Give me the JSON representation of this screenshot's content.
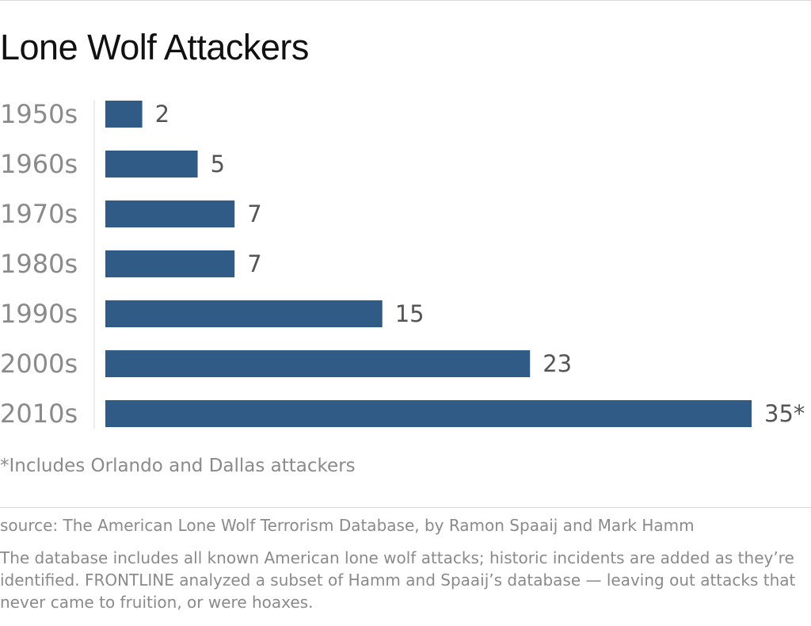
{
  "title": "Lone Wolf Attackers",
  "footnote": "*Includes Orlando and Dallas attackers",
  "source": "source: The American Lone Wolf Terrorism Database, by Ramon Spaaij and Mark Hamm",
  "note": "The database includes all known American lone wolf attacks; historic incidents are added as they’re identified. FRONTLINE analyzed a subset of Hamm and Spaaij’s database — leaving out attacks that never came to fruition, or were hoaxes.",
  "colors": {
    "bar": "#2f5b86",
    "category_text": "#8a8a8a",
    "value_text": "#555555",
    "axis": "#d9d9d9"
  },
  "chart_data": {
    "type": "bar",
    "orientation": "horizontal",
    "categories": [
      "1950s",
      "1960s",
      "1970s",
      "1980s",
      "1990s",
      "2000s",
      "2010s"
    ],
    "values": [
      2,
      5,
      7,
      7,
      15,
      23,
      35
    ],
    "value_labels": [
      "2",
      "5",
      "7",
      "7",
      "15",
      "23",
      "35*"
    ],
    "xlim": [
      0,
      35
    ],
    "grid": false,
    "legend": "none"
  }
}
